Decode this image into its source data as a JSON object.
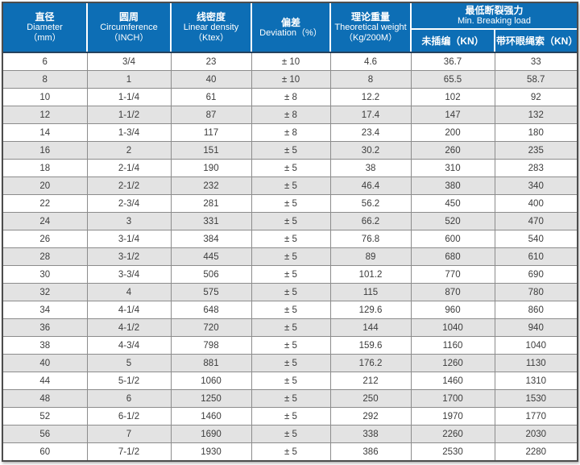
{
  "colors": {
    "header_bg": "#0d6eb5",
    "header_text": "#ffffff",
    "row_bg": "#ffffff",
    "row_alt_bg": "#e3e3e3",
    "grid_border": "#8c8c8c",
    "outer_border": "#4d4d4d",
    "header_divider": "#ffffff",
    "header_bottom_border": "#25425e",
    "cell_text": "#3c3c3c"
  },
  "table": {
    "columns": [
      {
        "zh": "直径",
        "en": "Diameter",
        "unit": "（mm）"
      },
      {
        "zh": "圆周",
        "en": "Circumference",
        "unit": "（INCH）"
      },
      {
        "zh": "线密度",
        "en": "Linear density",
        "unit": "（Ktex）"
      },
      {
        "zh": "偏差",
        "en": "Deviation（%）",
        "unit": ""
      },
      {
        "zh": "理论重量",
        "en": "Theoretical weight",
        "unit": "（Kg/200M）"
      },
      {
        "zh": "最低断裂强力",
        "en": "Min. Breaking load",
        "sub": [
          "未插编（KN）",
          "带环眼绳索（KN）"
        ]
      }
    ],
    "rows": [
      [
        "6",
        "3/4",
        "23",
        "± 10",
        "4.6",
        "36.7",
        "33"
      ],
      [
        "8",
        "1",
        "40",
        "± 10",
        "8",
        "65.5",
        "58.7"
      ],
      [
        "10",
        "1-1/4",
        "61",
        "± 8",
        "12.2",
        "102",
        "92"
      ],
      [
        "12",
        "1-1/2",
        "87",
        "± 8",
        "17.4",
        "147",
        "132"
      ],
      [
        "14",
        "1-3/4",
        "117",
        "± 8",
        "23.4",
        "200",
        "180"
      ],
      [
        "16",
        "2",
        "151",
        "± 5",
        "30.2",
        "260",
        "235"
      ],
      [
        "18",
        "2-1/4",
        "190",
        "± 5",
        "38",
        "310",
        "283"
      ],
      [
        "20",
        "2-1/2",
        "232",
        "± 5",
        "46.4",
        "380",
        "340"
      ],
      [
        "22",
        "2-3/4",
        "281",
        "± 5",
        "56.2",
        "450",
        "400"
      ],
      [
        "24",
        "3",
        "331",
        "± 5",
        "66.2",
        "520",
        "470"
      ],
      [
        "26",
        "3-1/4",
        "384",
        "± 5",
        "76.8",
        "600",
        "540"
      ],
      [
        "28",
        "3-1/2",
        "445",
        "± 5",
        "89",
        "680",
        "610"
      ],
      [
        "30",
        "3-3/4",
        "506",
        "± 5",
        "101.2",
        "770",
        "690"
      ],
      [
        "32",
        "4",
        "575",
        "± 5",
        "115",
        "870",
        "780"
      ],
      [
        "34",
        "4-1/4",
        "648",
        "± 5",
        "129.6",
        "960",
        "860"
      ],
      [
        "36",
        "4-1/2",
        "720",
        "± 5",
        "144",
        "1040",
        "940"
      ],
      [
        "38",
        "4-3/4",
        "798",
        "± 5",
        "159.6",
        "1160",
        "1040"
      ],
      [
        "40",
        "5",
        "881",
        "± 5",
        "176.2",
        "1260",
        "1130"
      ],
      [
        "44",
        "5-1/2",
        "1060",
        "± 5",
        "212",
        "1460",
        "1310"
      ],
      [
        "48",
        "6",
        "1250",
        "± 5",
        "250",
        "1700",
        "1530"
      ],
      [
        "52",
        "6-1/2",
        "1460",
        "± 5",
        "292",
        "1970",
        "1770"
      ],
      [
        "56",
        "7",
        "1690",
        "± 5",
        "338",
        "2260",
        "2030"
      ],
      [
        "60",
        "7-1/2",
        "1930",
        "± 5",
        "386",
        "2530",
        "2280"
      ]
    ]
  }
}
